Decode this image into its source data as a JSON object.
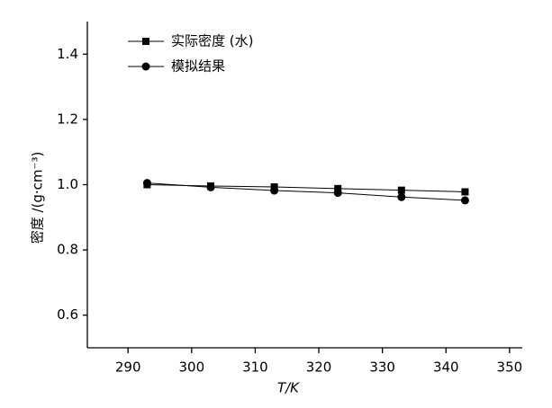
{
  "chart_data": {
    "type": "line",
    "x_label": "T/K",
    "y_label": "密度 /(g·cm⁻³)",
    "x": [
      293,
      303,
      313,
      323,
      333,
      343
    ],
    "series": [
      {
        "name": "实际密度 (水)",
        "color": "#000000",
        "marker": "square",
        "values": [
          1.0,
          0.996,
          0.993,
          0.988,
          0.983,
          0.978
        ]
      },
      {
        "name": "模拟结果",
        "color": "#000000",
        "marker": "circle",
        "values": [
          1.005,
          0.992,
          0.982,
          0.975,
          0.962,
          0.952
        ]
      }
    ],
    "xlim": [
      283.6,
      352
    ],
    "xticks": [
      290,
      300,
      310,
      320,
      330,
      340,
      350
    ],
    "ylim": [
      0.5,
      1.5
    ],
    "yticks": [
      0.6,
      0.8,
      {
        "value": 1,
        "label": "1.0"
      },
      1.2,
      1.4
    ],
    "legend": "upper left"
  }
}
